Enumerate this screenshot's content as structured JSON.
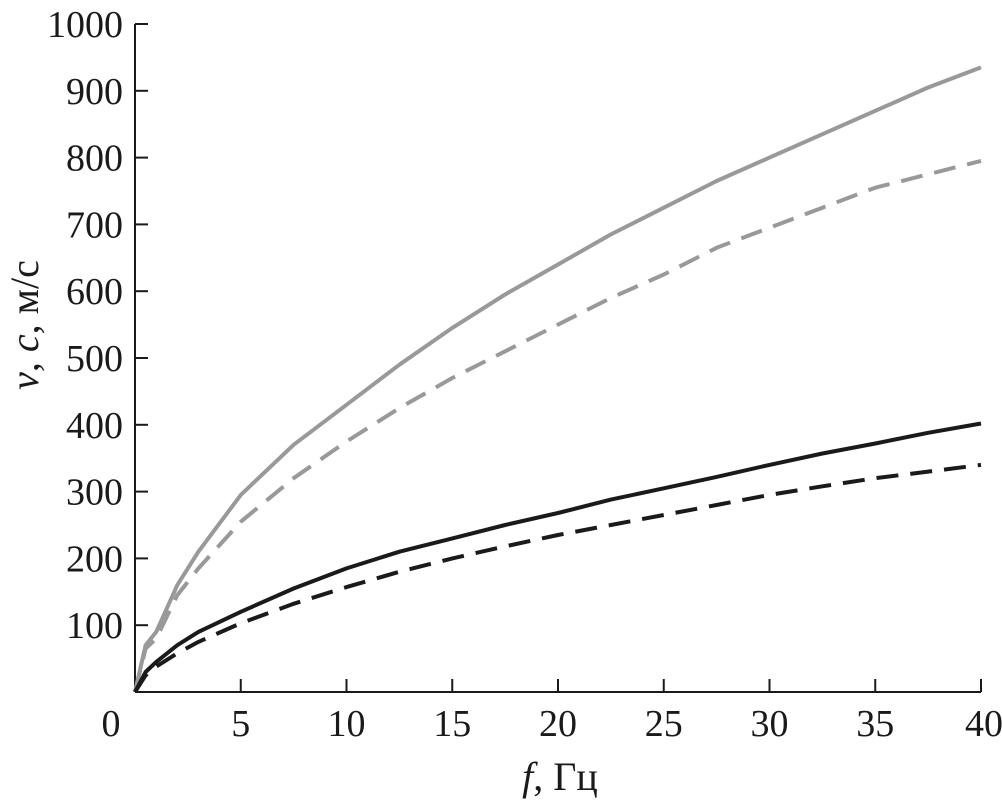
{
  "chart_data": {
    "type": "line",
    "xlabel_italic": "f",
    "xlabel_rest": ", Гц",
    "ylabel_v": "v",
    "ylabel_c": "c",
    "ylabel_sep": ", ",
    "ylabel_unit": ", м/с",
    "xlim": [
      0,
      40
    ],
    "ylim": [
      0,
      1000
    ],
    "x_ticks": [
      0,
      5,
      10,
      15,
      20,
      25,
      30,
      35,
      40
    ],
    "y_ticks": [
      100,
      200,
      300,
      400,
      500,
      600,
      700,
      800,
      900,
      1000
    ],
    "grid": false,
    "series": [
      {
        "color": "#999999",
        "dash": "solid",
        "x": [
          0,
          0.5,
          1,
          2,
          3,
          5,
          7.5,
          10,
          12.5,
          15,
          17.5,
          20,
          22.5,
          25,
          27.5,
          30,
          32.5,
          35,
          37.5,
          40
        ],
        "y": [
          0,
          70,
          90,
          160,
          210,
          295,
          370,
          430,
          490,
          545,
          595,
          640,
          685,
          725,
          765,
          800,
          835,
          870,
          905,
          935
        ]
      },
      {
        "color": "#999999",
        "dash": "dashed",
        "x": [
          0,
          0.5,
          1,
          2,
          3,
          5,
          7.5,
          10,
          12.5,
          15,
          17.5,
          20,
          22.5,
          25,
          27.5,
          30,
          32.5,
          35,
          37.5,
          40
        ],
        "y": [
          0,
          65,
          80,
          145,
          185,
          255,
          320,
          375,
          425,
          470,
          510,
          550,
          590,
          625,
          665,
          695,
          725,
          755,
          775,
          795
        ]
      },
      {
        "color": "#1a1a1a",
        "dash": "solid",
        "x": [
          0,
          0.5,
          1,
          2,
          3,
          5,
          7.5,
          10,
          12.5,
          15,
          17.5,
          20,
          22.5,
          25,
          27.5,
          30,
          32.5,
          35,
          37.5,
          40
        ],
        "y": [
          0,
          30,
          45,
          70,
          90,
          120,
          155,
          185,
          210,
          230,
          250,
          268,
          288,
          305,
          322,
          340,
          357,
          372,
          388,
          402
        ]
      },
      {
        "color": "#1a1a1a",
        "dash": "dashed",
        "x": [
          0,
          0.5,
          1,
          2,
          3,
          5,
          7.5,
          10,
          12.5,
          15,
          17.5,
          20,
          22.5,
          25,
          27.5,
          30,
          32.5,
          35,
          37.5,
          40
        ],
        "y": [
          0,
          25,
          38,
          58,
          75,
          103,
          132,
          157,
          180,
          200,
          218,
          235,
          250,
          265,
          280,
          295,
          308,
          320,
          330,
          340
        ]
      }
    ]
  }
}
